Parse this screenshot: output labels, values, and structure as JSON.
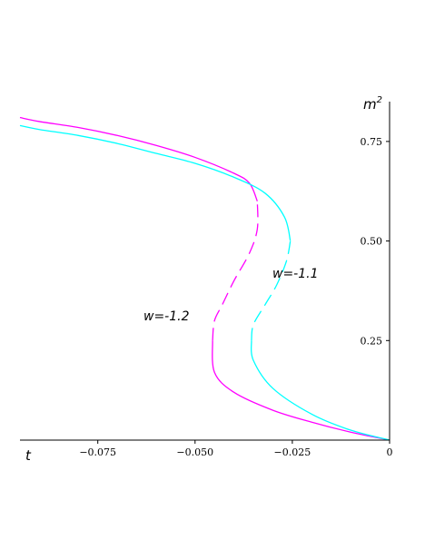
{
  "chart_data": {
    "type": "line",
    "xlabel": "t",
    "ylabel": "m",
    "ylabel_sup": "2",
    "xlim": [
      -0.095,
      0.0
    ],
    "ylim": [
      0.0,
      0.85
    ],
    "x_ticks": [
      {
        "value": -0.075,
        "label": "−0.075"
      },
      {
        "value": -0.05,
        "label": "−0.050"
      },
      {
        "value": -0.025,
        "label": "−0.025"
      },
      {
        "value": 0.0,
        "label": "0"
      }
    ],
    "y_ticks": [
      {
        "value": 0.25,
        "label": "0.25"
      },
      {
        "value": 0.5,
        "label": "0.50"
      },
      {
        "value": 0.75,
        "label": "0.75"
      }
    ],
    "grid": false,
    "series": [
      {
        "name": "w=-1.2",
        "color": "#ff00ff",
        "segments": [
          {
            "style": "solid",
            "points": [
              [
                0.0,
                0.0
              ],
              [
                -0.01,
                0.02
              ],
              [
                -0.02,
                0.045
              ],
              [
                -0.03,
                0.075
              ],
              [
                -0.04,
                0.12
              ],
              [
                -0.045,
                0.17
              ],
              [
                -0.0455,
                0.25
              ]
            ]
          },
          {
            "style": "dashed",
            "points": [
              [
                -0.0455,
                0.25
              ],
              [
                -0.045,
                0.3
              ],
              [
                -0.043,
                0.34
              ],
              [
                -0.04,
                0.4
              ],
              [
                -0.036,
                0.47
              ],
              [
                -0.034,
                0.53
              ],
              [
                -0.034,
                0.6
              ]
            ]
          },
          {
            "style": "solid",
            "points": [
              [
                -0.034,
                0.6
              ],
              [
                -0.036,
                0.645
              ],
              [
                -0.04,
                0.67
              ],
              [
                -0.05,
                0.71
              ],
              [
                -0.06,
                0.74
              ],
              [
                -0.07,
                0.765
              ],
              [
                -0.08,
                0.785
              ],
              [
                -0.09,
                0.8
              ],
              [
                -0.095,
                0.81
              ]
            ]
          }
        ]
      },
      {
        "name": "w=-1.1",
        "color": "#00ffff",
        "segments": [
          {
            "style": "solid",
            "points": [
              [
                0.0,
                0.0
              ],
              [
                -0.01,
                0.025
              ],
              [
                -0.02,
                0.065
              ],
              [
                -0.03,
                0.13
              ],
              [
                -0.035,
                0.2
              ],
              [
                -0.0355,
                0.25
              ]
            ]
          },
          {
            "style": "dashed",
            "points": [
              [
                -0.0355,
                0.25
              ],
              [
                -0.035,
                0.29
              ],
              [
                -0.032,
                0.34
              ],
              [
                -0.029,
                0.39
              ],
              [
                -0.0265,
                0.45
              ],
              [
                -0.0255,
                0.5
              ]
            ]
          },
          {
            "style": "solid",
            "points": [
              [
                -0.0255,
                0.5
              ],
              [
                -0.027,
                0.56
              ],
              [
                -0.032,
                0.62
              ],
              [
                -0.04,
                0.66
              ],
              [
                -0.05,
                0.695
              ],
              [
                -0.06,
                0.72
              ],
              [
                -0.07,
                0.745
              ],
              [
                -0.08,
                0.765
              ],
              [
                -0.09,
                0.78
              ],
              [
                -0.095,
                0.79
              ]
            ]
          }
        ]
      }
    ]
  }
}
